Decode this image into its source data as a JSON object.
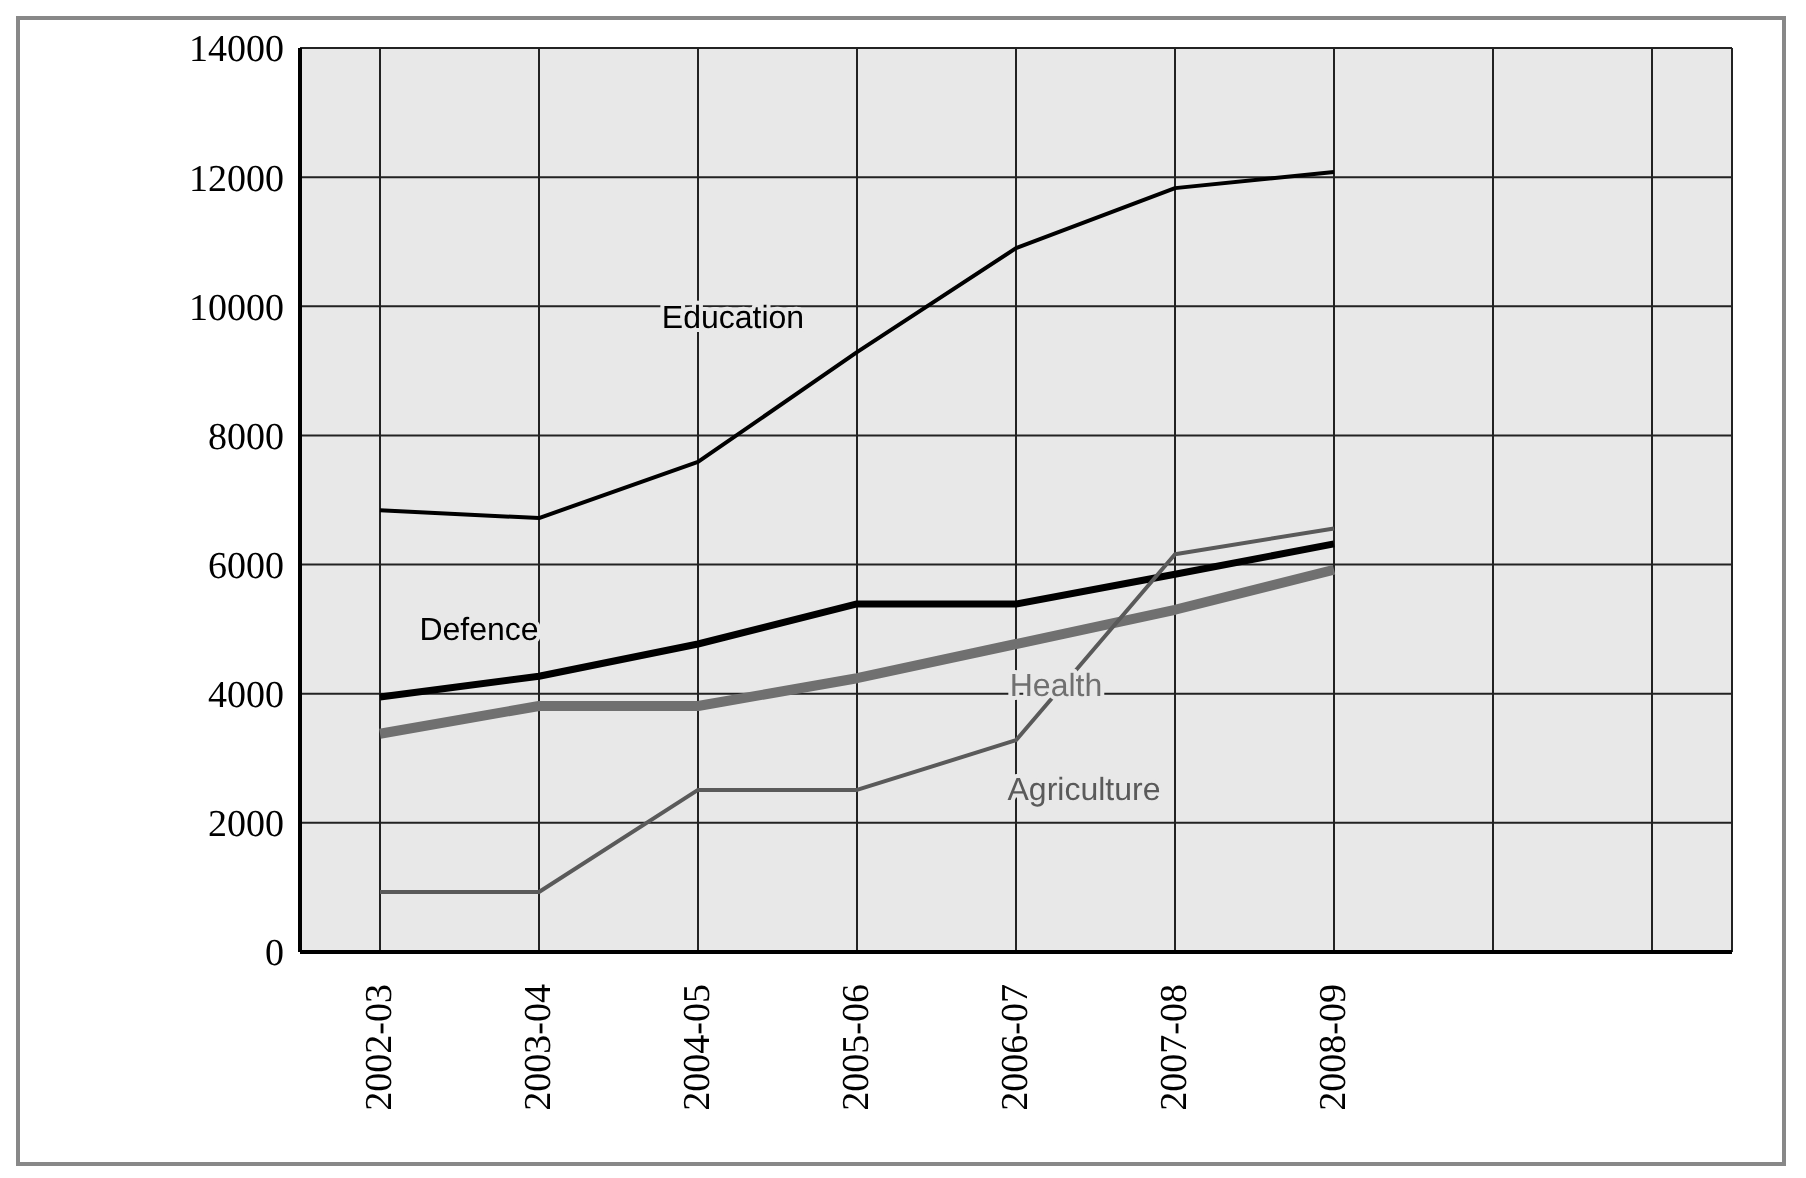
{
  "chart_data": {
    "type": "line",
    "categories": [
      "2002-03",
      "2003-04",
      "2004-05",
      "2005-06",
      "2006-07",
      "2007-08",
      "2008-09",
      null,
      null
    ],
    "series": [
      {
        "name": "Education",
        "color": "#000000",
        "values": [
          6840,
          6720,
          7590,
          9290,
          10900,
          11830,
          12080,
          null,
          null
        ]
      },
      {
        "name": "Defence",
        "color": "#000000",
        "values": [
          3950,
          4270,
          4770,
          5390,
          5390,
          5850,
          6320,
          null,
          null
        ]
      },
      {
        "name": "Health",
        "color": "#707070",
        "values": [
          3380,
          3810,
          3810,
          4240,
          4770,
          5300,
          5920,
          null,
          null
        ]
      },
      {
        "name": "Agriculture",
        "color": "#5a5a5a",
        "values": [
          930,
          930,
          2510,
          2510,
          3280,
          6160,
          6560,
          null,
          null
        ]
      }
    ],
    "ylim": [
      0,
      14000
    ],
    "yticks": [
      0,
      2000,
      4000,
      6000,
      8000,
      10000,
      12000,
      14000
    ],
    "grid": true,
    "marker": "none",
    "line_style": "solid"
  }
}
